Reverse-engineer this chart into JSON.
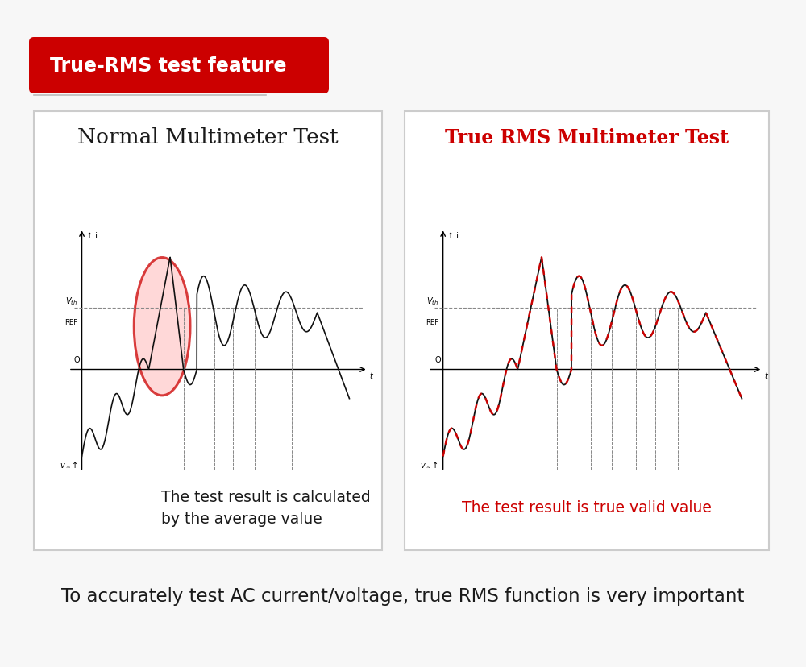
{
  "bg_color": "#f7f7f7",
  "panel_bg": "#ffffff",
  "title_banner_color": "#cc0000",
  "title_banner_text": "True-RMS test feature",
  "title_banner_text_color": "#ffffff",
  "bottom_text": "To accurately test AC current/voltage, true RMS function is very important",
  "bottom_text_color": "#1a1a1a",
  "left_panel_title": "Normal Multimeter Test",
  "left_panel_title_color": "#1a1a1a",
  "left_panel_desc": "The test result is calculated\nby the average value",
  "left_panel_desc_color": "#1a1a1a",
  "right_panel_title": "True RMS Multimeter Test",
  "right_panel_title_color": "#cc0000",
  "right_panel_desc": "The test result is true valid value",
  "right_panel_desc_color": "#cc0000",
  "circle_color": "#cc0000",
  "circle_fill": "#ffcccc",
  "dashed_line_color": "#888888",
  "vth_line_color": "#888888",
  "signal_color": "#111111",
  "red_signal_color": "#dd0000",
  "panel_border_color": "#cccccc"
}
